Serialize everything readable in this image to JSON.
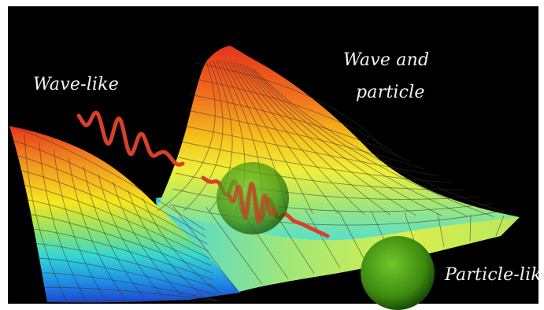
{
  "labels": {
    "wave_like": "Wave-like",
    "wave_and": "Wave and",
    "particle": "particle",
    "particle_like": "Particle-like"
  },
  "colors": {
    "background": "#000000",
    "surface_high": "#e53b1e",
    "surface_mid": "#f5e11a",
    "surface_low": "#1d45d6",
    "wave": "#e0412a",
    "particle_sphere": "#4a9a18"
  }
}
